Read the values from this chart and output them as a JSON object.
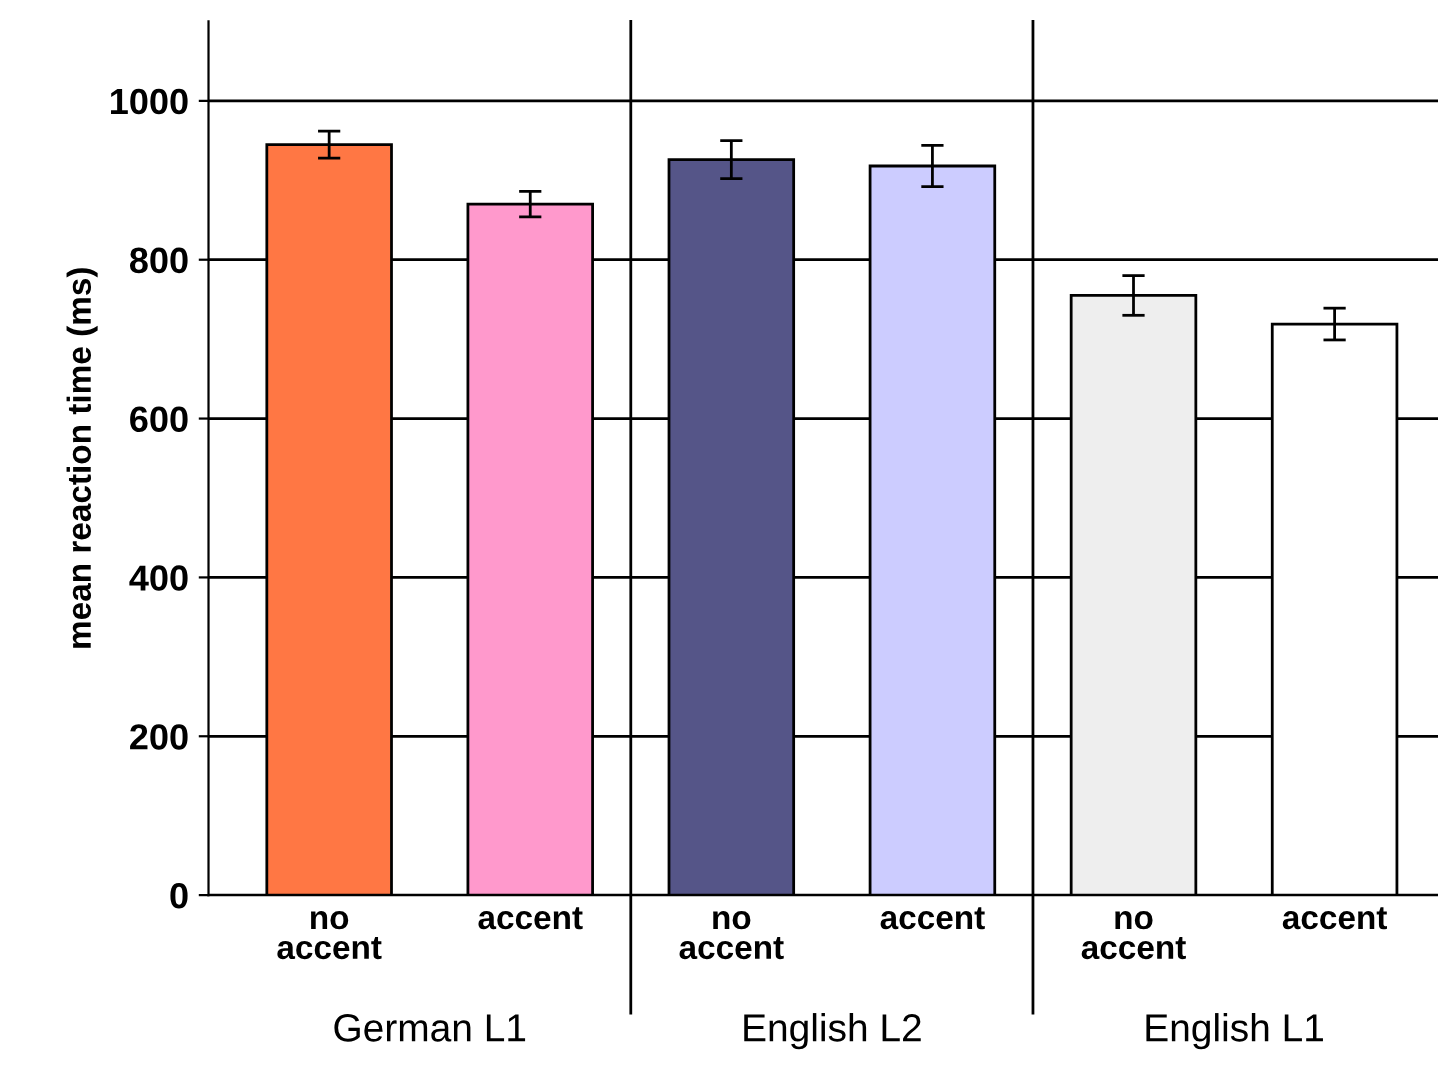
{
  "chart_data": {
    "type": "bar",
    "ylabel": "mean reaction time (ms)",
    "categories": [
      "no\naccent",
      "accent",
      "no\naccent",
      "accent",
      "no\naccent",
      "accent"
    ],
    "values": [
      945,
      870,
      926,
      918,
      755,
      719
    ],
    "errors": [
      17,
      16,
      24,
      26,
      25,
      20
    ],
    "colors": [
      "#ff7744",
      "#ff99cc",
      "#555588",
      "#ccccff",
      "#eeeeee",
      "#ffffff"
    ],
    "annotations": [
      "German L1",
      "English L2",
      "English L1"
    ],
    "ylim": [
      0,
      1100
    ],
    "yticks": [
      0,
      200,
      400,
      600,
      800,
      1000
    ],
    "grid": "y"
  }
}
